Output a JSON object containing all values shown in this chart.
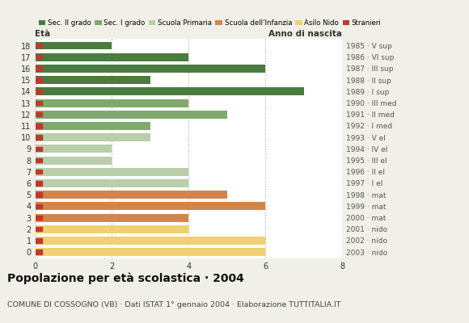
{
  "ages": [
    18,
    17,
    16,
    15,
    14,
    13,
    12,
    11,
    10,
    9,
    8,
    7,
    6,
    5,
    4,
    3,
    2,
    1,
    0
  ],
  "values": [
    2,
    4,
    6,
    3,
    7,
    4,
    5,
    3,
    3,
    2,
    2,
    4,
    4,
    5,
    6,
    4,
    4,
    6,
    6
  ],
  "years": [
    "1985 · V sup",
    "1986 · VI sup",
    "1987 · III sup",
    "1988 · II sup",
    "1989 · I sup",
    "1990 · III med",
    "1991 · II med",
    "1992 · I med",
    "1993 · V el",
    "1994 · IV el",
    "1995 · III el",
    "1996 · II el",
    "1997 · I el",
    "1998 · mat",
    "1999 · mat",
    "2000 · mat",
    "2001 · nido",
    "2002 · nido",
    "2003 · nido"
  ],
  "colors": [
    "#4a7c3f",
    "#4a7c3f",
    "#4a7c3f",
    "#4a7c3f",
    "#4a7c3f",
    "#7faa6b",
    "#7faa6b",
    "#7faa6b",
    "#b8cfaa",
    "#b8cfaa",
    "#b8cfaa",
    "#b8cfaa",
    "#b8cfaa",
    "#d2854a",
    "#d2854a",
    "#d2854a",
    "#f0d070",
    "#f0d070",
    "#f0d070"
  ],
  "legend_labels": [
    "Sec. II grado",
    "Sec. I grado",
    "Scuola Primaria",
    "Scuola dell'Infanzia",
    "Asilo Nido",
    "Stranieri"
  ],
  "legend_colors": [
    "#4a7c3f",
    "#7faa6b",
    "#b8cfaa",
    "#d2854a",
    "#f0d070",
    "#c0392b"
  ],
  "title": "Popolazione per età scolastica · 2004",
  "subtitle": "COMUNE DI COSSOGNO (VB) · Dati ISTAT 1° gennaio 2004 · Elaborazione TUTTITALIA.IT",
  "xlabel_left": "Età",
  "xlabel_right": "Anno di nascita",
  "xlim": [
    0,
    8
  ],
  "xticks": [
    0,
    2,
    4,
    6,
    8
  ],
  "background_color": "#f0f0e8",
  "plot_background": "#ffffff",
  "stranieri_color": "#c0392b",
  "bar_height": 0.7,
  "grid_color": "#aaaaaa"
}
